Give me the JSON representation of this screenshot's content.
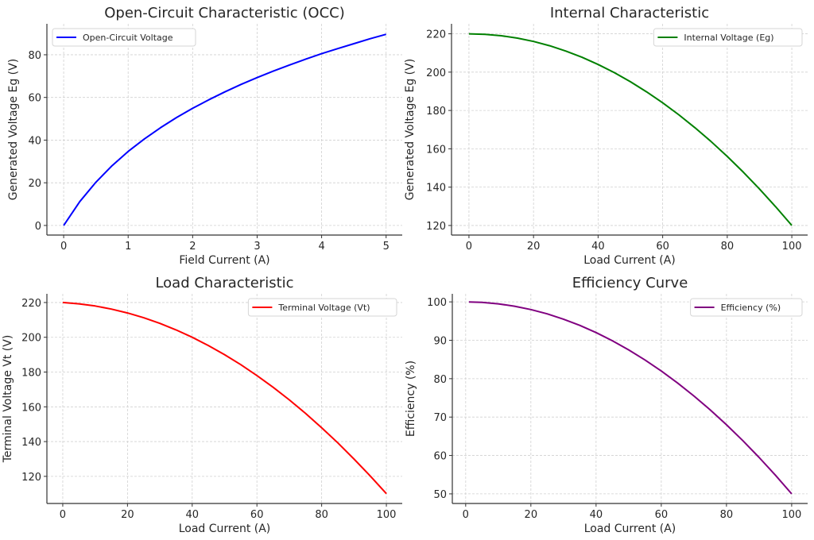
{
  "chart_data": [
    {
      "type": "line",
      "title": "Open-Circuit Characteristic (OCC)",
      "xlabel": "Field Current (A)",
      "ylabel": "Generated Voltage Eg (V)",
      "xlim": [
        -0.26,
        5.25
      ],
      "ylim": [
        -4.5,
        94.5
      ],
      "xticks": [
        0,
        1,
        2,
        3,
        4,
        5
      ],
      "yticks": [
        0,
        20,
        40,
        60,
        80
      ],
      "grid": true,
      "legend": "top-left",
      "series": [
        {
          "name": "Open-Circuit Voltage",
          "color": "#0000ff",
          "x": [
            0,
            0.25,
            0.5,
            0.75,
            1,
            1.25,
            1.5,
            1.75,
            2,
            2.25,
            2.5,
            2.75,
            3,
            3.25,
            3.5,
            3.75,
            4,
            4.25,
            4.5,
            4.75,
            5
          ],
          "y": [
            0,
            11.2,
            20.3,
            28.0,
            34.7,
            40.5,
            45.8,
            50.6,
            54.9,
            58.9,
            62.6,
            66.1,
            69.3,
            72.3,
            75.2,
            77.9,
            80.5,
            82.9,
            85.2,
            87.5,
            89.6
          ]
        }
      ]
    },
    {
      "type": "line",
      "title": "Internal Characteristic",
      "xlabel": "Load Current (A)",
      "ylabel": "Generated Voltage Eg (V)",
      "xlim": [
        -5.4,
        104.9
      ],
      "ylim": [
        115,
        225.2
      ],
      "xticks": [
        0,
        20,
        40,
        60,
        80,
        100
      ],
      "yticks": [
        120,
        140,
        160,
        180,
        200,
        220
      ],
      "grid": true,
      "legend": "top-right",
      "series": [
        {
          "name": "Internal Voltage (Eg)",
          "color": "#008000",
          "x": [
            0,
            5,
            10,
            15,
            20,
            25,
            30,
            35,
            40,
            45,
            50,
            55,
            60,
            65,
            70,
            75,
            80,
            85,
            90,
            95,
            100
          ],
          "y": [
            220,
            219.75,
            219,
            217.75,
            216,
            213.75,
            211,
            207.75,
            204,
            199.75,
            195,
            189.75,
            184,
            177.75,
            171,
            163.75,
            156,
            147.75,
            139,
            129.75,
            120
          ]
        }
      ]
    },
    {
      "type": "line",
      "title": "Load Characteristic",
      "xlabel": "Load Current (A)",
      "ylabel": "Terminal Voltage Vt (V)",
      "xlim": [
        -4.9,
        104.9
      ],
      "ylim": [
        104.4,
        225
      ],
      "xticks": [
        0,
        20,
        40,
        60,
        80,
        100
      ],
      "yticks": [
        120,
        140,
        160,
        180,
        200,
        220
      ],
      "grid": true,
      "legend": "top-right",
      "series": [
        {
          "name": "Terminal Voltage (Vt)",
          "color": "#ff0000",
          "x": [
            0,
            5,
            10,
            15,
            20,
            25,
            30,
            35,
            40,
            45,
            50,
            55,
            60,
            65,
            70,
            75,
            80,
            85,
            90,
            95,
            100
          ],
          "y": [
            220,
            219.25,
            218,
            216.25,
            214,
            211.25,
            208,
            204.25,
            200,
            195.25,
            190,
            184.25,
            178,
            171.25,
            164,
            156.25,
            148,
            139.25,
            130,
            120.25,
            110
          ]
        }
      ]
    },
    {
      "type": "line",
      "title": "Efficiency Curve",
      "xlabel": "Load Current (A)",
      "ylabel": "Efficiency (%)",
      "xlim": [
        -4.1,
        104.9
      ],
      "ylim": [
        47.5,
        102.1
      ],
      "xticks": [
        0,
        20,
        40,
        60,
        80,
        100
      ],
      "yticks": [
        50,
        60,
        70,
        80,
        90,
        100
      ],
      "grid": true,
      "legend": "top-right",
      "series": [
        {
          "name": "Efficiency (%)",
          "color": "#800080",
          "x": [
            1,
            5,
            10,
            15,
            20,
            25,
            30,
            35,
            40,
            45,
            50,
            55,
            60,
            65,
            70,
            75,
            80,
            85,
            90,
            95,
            100
          ],
          "y": [
            100,
            99.88,
            99.5,
            98.88,
            98,
            96.88,
            95.5,
            93.88,
            92,
            89.88,
            87.5,
            84.88,
            82,
            78.88,
            75.5,
            71.88,
            68,
            63.88,
            59.5,
            54.88,
            50
          ]
        }
      ]
    }
  ]
}
